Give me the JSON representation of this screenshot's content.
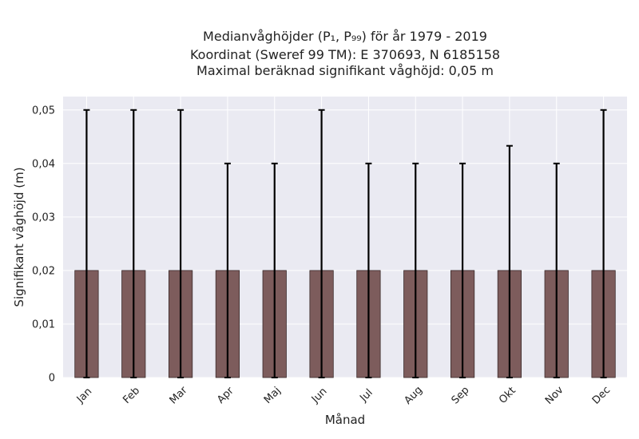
{
  "chart_data": {
    "type": "bar",
    "title_lines": [
      "Medianvåghöjder (P₁, P₉₉) för år 1979 - 2019",
      "Koordinat (Sweref 99 TM): E 370693, N 6185158",
      "Maximal beräknad signifikant våghöjd: 0,05 m"
    ],
    "xlabel": "Månad",
    "ylabel": "Signifikant våghöjd (m)",
    "categories": [
      "Jan",
      "Feb",
      "Mar",
      "Apr",
      "Maj",
      "Jun",
      "Jul",
      "Aug",
      "Sep",
      "Okt",
      "Nov",
      "Dec"
    ],
    "values": [
      0.02,
      0.02,
      0.02,
      0.02,
      0.02,
      0.02,
      0.02,
      0.02,
      0.02,
      0.02,
      0.02,
      0.02
    ],
    "error_low": [
      0,
      0,
      0,
      0,
      0,
      0,
      0,
      0,
      0,
      0,
      0,
      0
    ],
    "error_high": [
      0.05,
      0.05,
      0.05,
      0.04,
      0.04,
      0.05,
      0.04,
      0.04,
      0.04,
      0.0433,
      0.04,
      0.05
    ],
    "ylim": [
      0,
      0.0525
    ],
    "yticks": [
      0,
      0.01,
      0.02,
      0.03,
      0.04,
      0.05
    ],
    "ytick_labels": [
      "0",
      "0,01",
      "0,02",
      "0,03",
      "0,04",
      "0,05"
    ],
    "grid": true,
    "colors": {
      "bar": "#7d5c5c",
      "bar_edge": "#3a2a2a",
      "plot_bg": "#eaeaf2",
      "grid": "#ffffff",
      "errorbar": "#000000"
    }
  }
}
